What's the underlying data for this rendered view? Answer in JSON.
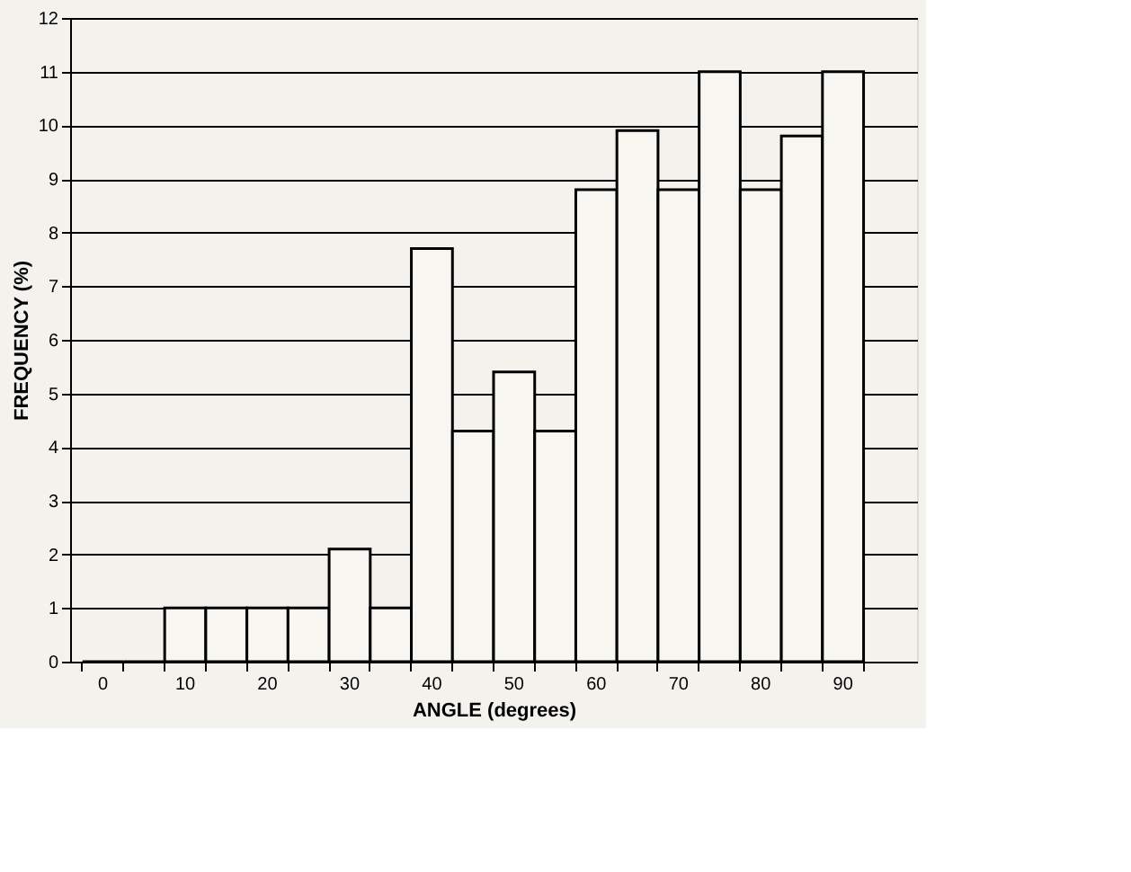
{
  "chart_data": {
    "type": "bar",
    "xlabel": "ANGLE (degrees)",
    "ylabel": "FREQUENCY (%)",
    "categories": [
      "0",
      null,
      "10",
      null,
      "20",
      null,
      "30",
      null,
      "40",
      null,
      "50",
      null,
      "60",
      null,
      "70",
      null,
      "80",
      null,
      "90",
      null
    ],
    "values": [
      0,
      0,
      1,
      1,
      1,
      1,
      2.1,
      1,
      7.7,
      4.3,
      5.4,
      4.3,
      8.8,
      9.9,
      8.8,
      11.0,
      8.8,
      9.8,
      11.0,
      null
    ],
    "colors": [
      "#000000",
      "#000000",
      "#f7f6f0",
      "#f7f6f0",
      "#f7f6f0",
      "#f7f6f0",
      "#f7f6f0",
      "#f7f6f0",
      "#f7f6f0",
      "#f7f6f0",
      "#f7f6f0",
      "#f7f6f0",
      "#f7f6f0",
      "#f7f6f0",
      "#f7f6f0",
      "#f7f6f0",
      "#f7f6f0",
      "#f7f6f0",
      "#f7f6f0",
      "#f7f6f0"
    ],
    "ylim": [
      0,
      12
    ],
    "yticks": [
      0,
      1,
      2,
      3,
      4,
      5,
      6,
      7,
      8,
      9,
      10,
      11,
      12
    ],
    "grid": "y"
  }
}
